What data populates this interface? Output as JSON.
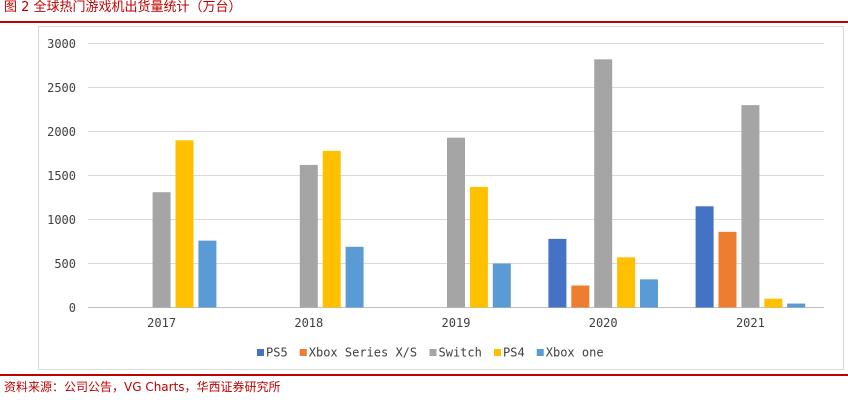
{
  "caption": "图 2 全球热门游戏机出货量统计（万台）",
  "source": "资料来源：公司公告，VG Charts，华西证券研究所",
  "chart_data": {
    "type": "bar",
    "title": "图 2 全球热门游戏机出货量统计（万台）",
    "xlabel": "",
    "ylabel": "",
    "ylim": [
      0,
      3000
    ],
    "yticks": [
      0,
      500,
      1000,
      1500,
      2000,
      2500,
      3000
    ],
    "yticklabels": [
      "0",
      "500",
      "1000",
      "1500",
      "2000",
      "2500",
      "3000"
    ],
    "grid": true,
    "legend_position": "bottom",
    "categories": [
      "2017",
      "2018",
      "2019",
      "2020",
      "2021"
    ],
    "series": [
      {
        "name": "PS5",
        "color": "#4472c4",
        "values": [
          null,
          null,
          null,
          780,
          1150
        ]
      },
      {
        "name": "Xbox Series X/S",
        "color": "#ed7d31",
        "values": [
          null,
          null,
          null,
          250,
          860
        ]
      },
      {
        "name": "Switch",
        "color": "#a5a5a5",
        "values": [
          1310,
          1620,
          1930,
          2820,
          2300
        ]
      },
      {
        "name": "PS4",
        "color": "#ffc000",
        "values": [
          1900,
          1780,
          1370,
          570,
          100
        ]
      },
      {
        "name": "Xbox one",
        "color": "#5b9bd5",
        "values": [
          760,
          690,
          500,
          320,
          45
        ]
      }
    ]
  }
}
